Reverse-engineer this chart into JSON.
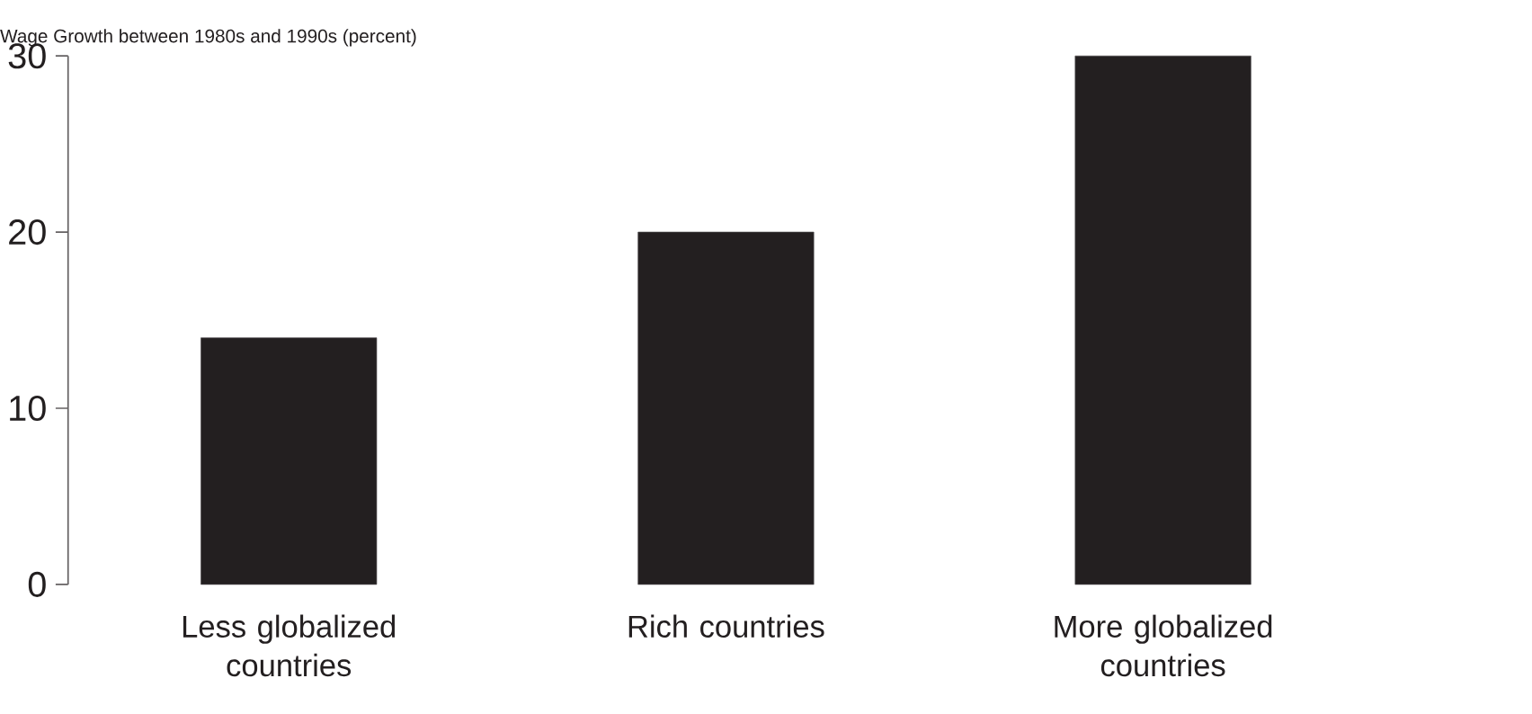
{
  "chart_data": {
    "type": "bar",
    "ylabel": "Wage Growth between 1980s and 1990s (percent)",
    "categories": [
      "Less globalized countries",
      "Rich countries",
      "More globalized countries"
    ],
    "values": [
      14,
      20,
      30
    ],
    "color": "#231f20",
    "ylim": [
      0,
      30
    ],
    "yticks": [
      0,
      10,
      20,
      30
    ]
  }
}
